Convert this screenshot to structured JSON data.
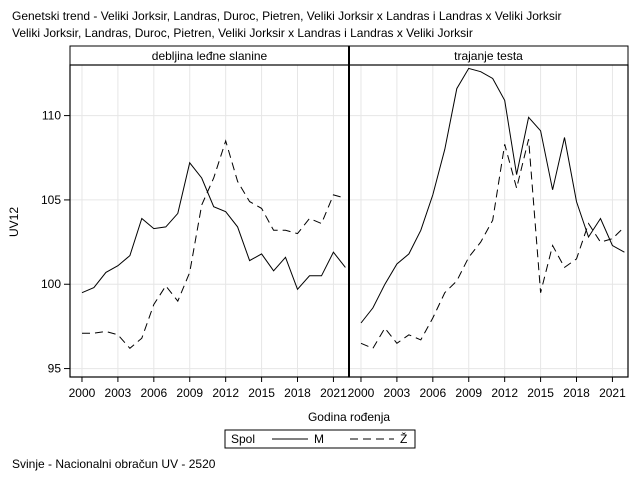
{
  "title": {
    "line1": "Genetski trend - Veliki Jorksir, Landras, Duroc, Pietren, Veliki Jorksir x Landras i Landras x Veliki Jorksir",
    "line2": "Veliki Jorksir, Landras, Duroc, Pietren, Veliki Jorksir x Landras i Landras x Veliki Jorksir"
  },
  "footnote": "Svinje - Nacionalni obračun UV - 2520",
  "chart_data": {
    "type": "line",
    "ylabel": "UV12",
    "xlabel": "Godina rođenja",
    "ylim": [
      94.5,
      113
    ],
    "xlim": [
      1999,
      2022.3
    ],
    "yticks": [
      95,
      100,
      105,
      110
    ],
    "xticks": [
      2000,
      2003,
      2006,
      2009,
      2012,
      2015,
      2018,
      2021
    ],
    "grid": true,
    "legend": {
      "title": "Spol",
      "placement": "bottom",
      "entries": [
        {
          "label": "M",
          "style": "solid"
        },
        {
          "label": "Ž",
          "style": "dashed"
        }
      ]
    },
    "panels": [
      {
        "title": "debljina leđne slanine",
        "x": [
          2000,
          2001,
          2002,
          2003,
          2004,
          2005,
          2006,
          2007,
          2008,
          2009,
          2010,
          2011,
          2012,
          2013,
          2014,
          2015,
          2016,
          2017,
          2018,
          2019,
          2020,
          2021,
          2022
        ],
        "series": [
          {
            "name": "M",
            "values": [
              99.5,
              99.8,
              100.7,
              101.1,
              101.7,
              103.9,
              103.3,
              103.4,
              104.2,
              107.2,
              106.3,
              104.6,
              104.3,
              103.4,
              101.4,
              101.8,
              100.8,
              101.6,
              99.7,
              100.5,
              100.5,
              101.9,
              101.0
            ]
          },
          {
            "name": "Ž",
            "values": [
              97.1,
              97.1,
              97.2,
              97.0,
              96.2,
              96.8,
              98.8,
              99.9,
              99.0,
              100.7,
              104.7,
              106.3,
              108.5,
              106.1,
              104.9,
              104.5,
              103.2,
              103.2,
              103.0,
              103.9,
              103.6,
              105.3,
              105.1
            ]
          }
        ]
      },
      {
        "title": "trajanje testa",
        "x": [
          2000,
          2001,
          2002,
          2003,
          2004,
          2005,
          2006,
          2007,
          2008,
          2009,
          2010,
          2011,
          2012,
          2013,
          2014,
          2015,
          2016,
          2017,
          2018,
          2019,
          2020,
          2021,
          2022
        ],
        "series": [
          {
            "name": "M",
            "values": [
              97.7,
              98.6,
              100.0,
              101.2,
              101.8,
              103.2,
              105.3,
              108.0,
              111.6,
              112.8,
              112.6,
              112.2,
              110.9,
              106.5,
              109.9,
              109.1,
              105.6,
              108.7,
              104.9,
              102.8,
              103.9,
              102.3,
              101.9
            ]
          },
          {
            "name": "Ž",
            "values": [
              96.5,
              96.2,
              97.4,
              96.5,
              97.0,
              96.7,
              98.0,
              99.5,
              100.2,
              101.6,
              102.5,
              103.8,
              108.3,
              105.7,
              108.6,
              99.5,
              102.3,
              101.0,
              101.5,
              103.6,
              102.5,
              102.7,
              103.4
            ]
          }
        ]
      }
    ]
  }
}
